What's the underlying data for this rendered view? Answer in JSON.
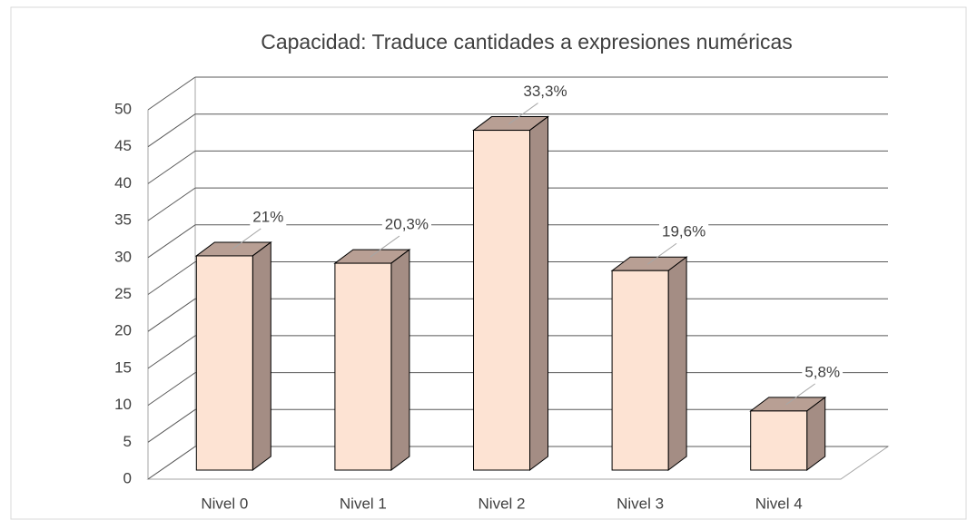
{
  "chart_data": {
    "type": "bar3d",
    "title": "Capacidad: Traduce cantidades a expresiones numéricas",
    "categories": [
      "Nivel 0",
      "Nivel 1",
      "Nivel 2",
      "Nivel 3",
      "Nivel 4"
    ],
    "values": [
      29,
      28,
      46,
      27,
      8
    ],
    "percentages": [
      21,
      20.3,
      33.3,
      19.6,
      5.8
    ],
    "percentage_labels": [
      "21%",
      "20,3%",
      "33,3%",
      "19,6%",
      "5,8%"
    ],
    "color": "#fde3d3",
    "ylim": [
      0,
      50
    ],
    "yticks": [
      0,
      5,
      10,
      15,
      20,
      25,
      30,
      35,
      40,
      45,
      50
    ],
    "grid": true
  }
}
